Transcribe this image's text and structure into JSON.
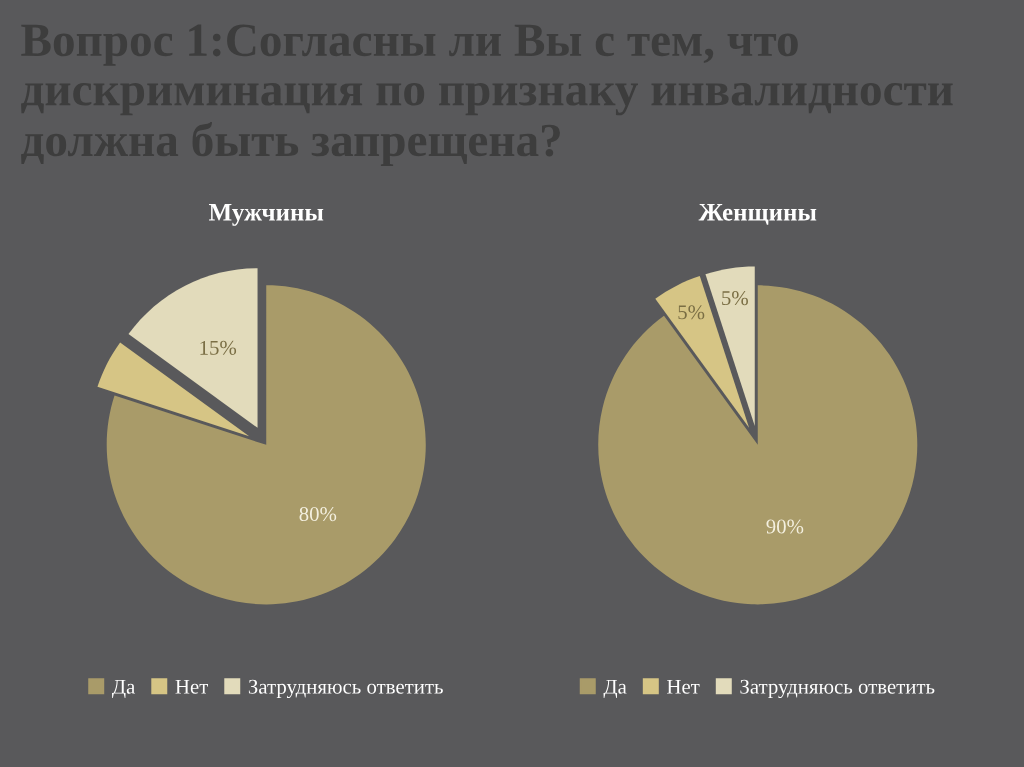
{
  "chart_data": [
    {
      "type": "pie",
      "title": "Мужчины",
      "categories": [
        "Да",
        "Нет",
        "Затрудняюсь ответить"
      ],
      "values": [
        80,
        5,
        15
      ],
      "colors": [
        "#a99b69",
        "#d6c585",
        "#e2dbbb"
      ],
      "value_labels": [
        "80%",
        null,
        "15%"
      ],
      "legend": "bottom",
      "annotations": [
        "Вопрос 1:Согласны ли Вы с тем, что дискриминация по признаку инвалидности должна быть запрещена?"
      ]
    },
    {
      "type": "pie",
      "title": "Женщины",
      "categories": [
        "Да",
        "Нет",
        "Затрудняюсь ответить"
      ],
      "values": [
        90,
        5,
        5
      ],
      "colors": [
        "#a99b69",
        "#d6c585",
        "#e2dbbb"
      ],
      "value_labels": [
        "90%",
        "5%",
        "5%"
      ],
      "legend": "bottom"
    }
  ]
}
